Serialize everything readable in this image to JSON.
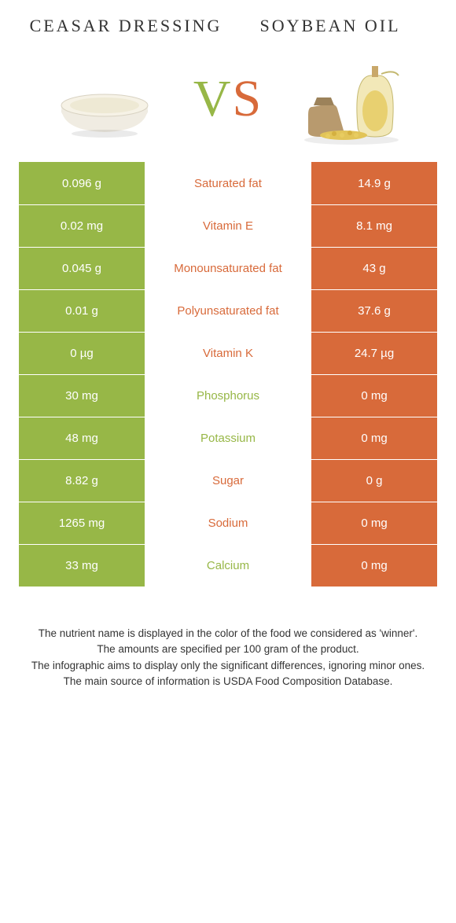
{
  "left_food": {
    "title": "Ceasar dressing"
  },
  "right_food": {
    "title": "Soybean oil"
  },
  "vs": {
    "v": "V",
    "s": "S"
  },
  "colors": {
    "green": "#97b747",
    "orange": "#d86a3a",
    "bg": "#ffffff"
  },
  "rows": [
    {
      "left": "0.096 g",
      "label": "Saturated fat",
      "right": "14.9 g",
      "winner": "orange"
    },
    {
      "left": "0.02 mg",
      "label": "Vitamin E",
      "right": "8.1 mg",
      "winner": "orange"
    },
    {
      "left": "0.045 g",
      "label": "Monounsaturated fat",
      "right": "43 g",
      "winner": "orange"
    },
    {
      "left": "0.01 g",
      "label": "Polyunsaturated fat",
      "right": "37.6 g",
      "winner": "orange"
    },
    {
      "left": "0 µg",
      "label": "Vitamin K",
      "right": "24.7 µg",
      "winner": "orange"
    },
    {
      "left": "30 mg",
      "label": "Phosphorus",
      "right": "0 mg",
      "winner": "green"
    },
    {
      "left": "48 mg",
      "label": "Potassium",
      "right": "0 mg",
      "winner": "green"
    },
    {
      "left": "8.82 g",
      "label": "Sugar",
      "right": "0 g",
      "winner": "orange"
    },
    {
      "left": "1265 mg",
      "label": "Sodium",
      "right": "0 mg",
      "winner": "orange"
    },
    {
      "left": "33 mg",
      "label": "Calcium",
      "right": "0 mg",
      "winner": "green"
    }
  ],
  "footnote": {
    "l1": "The nutrient name is displayed in the color of the food we considered as 'winner'.",
    "l2": "The amounts are specified per 100 gram of the product.",
    "l3": "The infographic aims to display only the significant differences, ignoring minor ones.",
    "l4": "The main source of information is USDA Food Composition Database."
  }
}
